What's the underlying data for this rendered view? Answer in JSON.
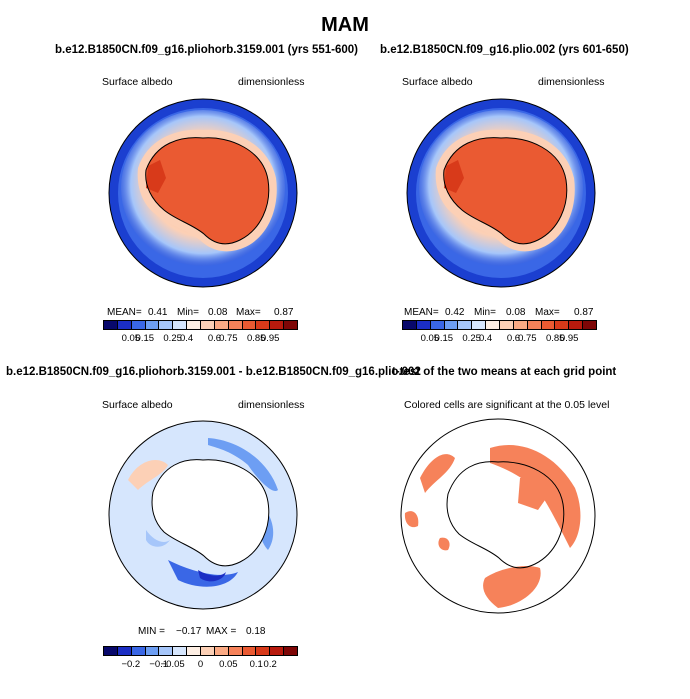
{
  "figure": {
    "title": "MAM"
  },
  "panels": {
    "top_left": {
      "title": "b.e12.B1850CN.f09_g16.pliohorb.3159.001 (yrs 551-600)",
      "left_label": "Surface albedo",
      "right_label": "dimensionless",
      "mean_label": "MEAN=",
      "mean_value": "0.41",
      "min_label": "Min=",
      "min_value": "0.08",
      "max_label": "Max=",
      "max_value": "0.87"
    },
    "top_right": {
      "title": "b.e12.B1850CN.f09_g16.plio.002 (yrs 601-650)",
      "left_label": "Surface albedo",
      "right_label": "dimensionless",
      "mean_label": "MEAN=",
      "mean_value": "0.42",
      "min_label": "Min=",
      "min_value": "0.08",
      "max_label": "Max=",
      "max_value": "0.87"
    },
    "bottom_left": {
      "title": "b.e12.B1850CN.f09_g16.pliohorb.3159.001 - b.e12.B1850CN.f09_g16.plio.002",
      "left_label": "Surface albedo",
      "right_label": "dimensionless",
      "min_label": "MIN =",
      "min_value": "−0.17",
      "max_label": "MAX =",
      "max_value": "0.18"
    },
    "bottom_right": {
      "title": "t-test of the two means at each grid point",
      "subtitle": "Colored cells are significant at the 0.05 level"
    }
  },
  "colorbars": {
    "albedo": {
      "colors": [
        "#08086b",
        "#1b2ec4",
        "#3a67e6",
        "#6d9ef3",
        "#a6c6fa",
        "#d6e6fd",
        "#fdeee3",
        "#fcd0b6",
        "#fbaa84",
        "#f6825a",
        "#ea5a32",
        "#d83a1a",
        "#b81a0d",
        "#7e0606"
      ],
      "tick_labels": [
        "0.05",
        "0.15",
        "0.25",
        "0.4",
        "0.6",
        "0.75",
        "0.85",
        "0.95"
      ]
    },
    "difference": {
      "colors": [
        "#08086b",
        "#1b2ec4",
        "#3a67e6",
        "#6d9ef3",
        "#a6c6fa",
        "#d6e6fd",
        "#fdeee3",
        "#fcd0b6",
        "#fbaa84",
        "#f6825a",
        "#ea5a32",
        "#d83a1a",
        "#b81a0d",
        "#7e0606"
      ],
      "tick_labels": [
        "−0.2",
        "−0.1",
        "−0.05",
        "0",
        "0.05",
        "0.1",
        "0.2"
      ]
    }
  },
  "map_colors": {
    "ocean_deep": "#1b3fd0",
    "ice_land": "#ea5a32",
    "diff_background": "#d6e6fd",
    "significant": "#f6825a"
  }
}
